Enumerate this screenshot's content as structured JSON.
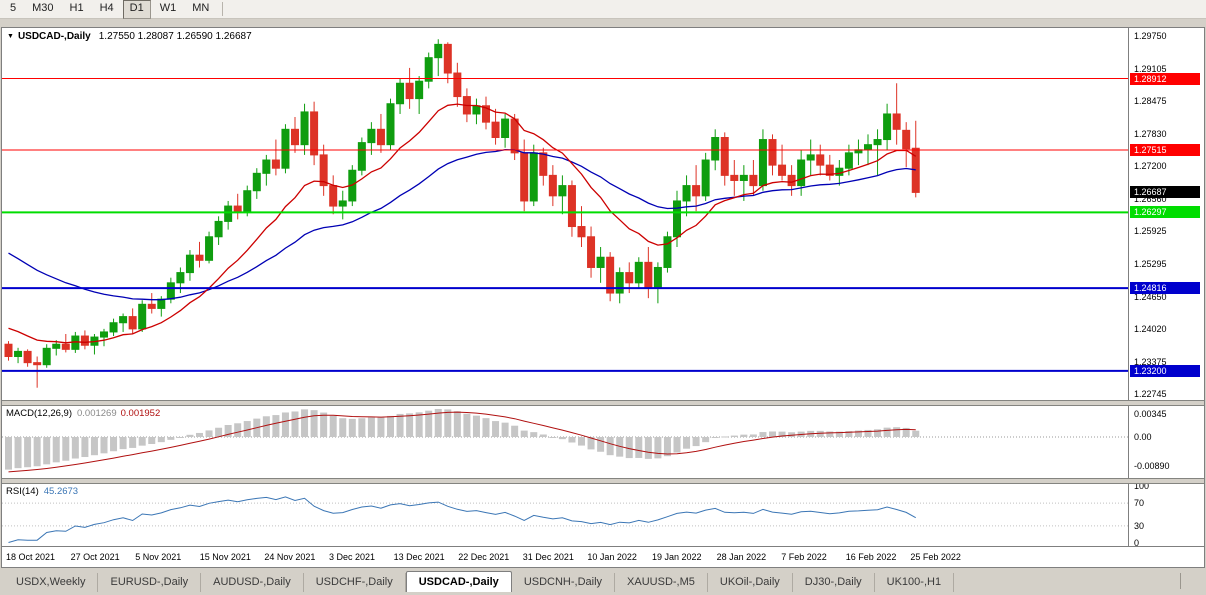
{
  "toolbar": {
    "timeframes": [
      {
        "label": "5",
        "active": false
      },
      {
        "label": "M30",
        "active": false
      },
      {
        "label": "H1",
        "active": false
      },
      {
        "label": "H4",
        "active": false
      },
      {
        "label": "D1",
        "active": true
      },
      {
        "label": "W1",
        "active": false
      },
      {
        "label": "MN",
        "active": false
      }
    ]
  },
  "chart": {
    "menu_icon": "▼",
    "symbol": "USDCAD-,Daily",
    "ohlc_text": "1.27550 1.28087 1.26590 1.26687",
    "price_axis_labels": [
      "1.29750",
      "1.29105",
      "1.28475",
      "1.27830",
      "1.27200",
      "1.26560",
      "1.25925",
      "1.25295",
      "1.24650",
      "1.24020",
      "1.23375",
      "1.22745"
    ],
    "date_labels": [
      "18 Oct 2021",
      "27 Oct 2021",
      "5 Nov 2021",
      "15 Nov 2021",
      "24 Nov 2021",
      "3 Dec 2021",
      "13 Dec 2021",
      "22 Dec 2021",
      "31 Dec 2021",
      "10 Jan 2022",
      "19 Jan 2022",
      "28 Jan 2022",
      "7 Feb 2022",
      "16 Feb 2022",
      "25 Feb 2022"
    ],
    "levels": [
      {
        "price": 1.28912,
        "label": "1.28912",
        "color": "#ff0000",
        "thickness": 1
      },
      {
        "price": 1.27515,
        "label": "1.27515",
        "color": "#ff0000",
        "thickness": 1
      },
      {
        "price": 1.26297,
        "label": "1.26297",
        "color": "#00dd00",
        "thickness": 2
      },
      {
        "price": 1.24816,
        "label": "1.24816",
        "color": "#0000cd",
        "thickness": 2
      },
      {
        "price": 1.232,
        "label": "1.23200",
        "color": "#0000cd",
        "thickness": 2
      }
    ],
    "current_price": {
      "value": 1.26687,
      "label": "1.26687",
      "bg": "#000000",
      "fg": "#ffffff"
    }
  },
  "chart_data": {
    "type": "candlestick",
    "symbol": "USDCAD-",
    "timeframe": "Daily",
    "ohlc_current": {
      "open": 1.2755,
      "high": 1.28087,
      "low": 1.2659,
      "close": 1.26687
    },
    "y_axis_range": [
      1.2263,
      1.299
    ],
    "candles": [
      [
        1.2372,
        1.2378,
        1.234,
        1.2348
      ],
      [
        1.2348,
        1.2365,
        1.2335,
        1.2358
      ],
      [
        1.2358,
        1.2362,
        1.2328,
        1.2336
      ],
      [
        1.2336,
        1.2348,
        1.2287,
        1.2332
      ],
      [
        1.2332,
        1.2372,
        1.2326,
        1.2364
      ],
      [
        1.2364,
        1.238,
        1.235,
        1.2372
      ],
      [
        1.2372,
        1.2392,
        1.2356,
        1.2362
      ],
      [
        1.2362,
        1.2396,
        1.2355,
        1.2388
      ],
      [
        1.2388,
        1.2399,
        1.2362,
        1.237
      ],
      [
        1.237,
        1.2392,
        1.2352,
        1.2386
      ],
      [
        1.2386,
        1.2402,
        1.2368,
        1.2396
      ],
      [
        1.2396,
        1.2422,
        1.2388,
        1.2414
      ],
      [
        1.2414,
        1.2432,
        1.2396,
        1.2426
      ],
      [
        1.2426,
        1.2442,
        1.2392,
        1.2402
      ],
      [
        1.2402,
        1.2458,
        1.2396,
        1.245
      ],
      [
        1.245,
        1.2472,
        1.2432,
        1.2442
      ],
      [
        1.2442,
        1.2466,
        1.2426,
        1.246
      ],
      [
        1.246,
        1.2502,
        1.2452,
        1.2492
      ],
      [
        1.2492,
        1.2522,
        1.2472,
        1.2512
      ],
      [
        1.2512,
        1.2556,
        1.2496,
        1.2546
      ],
      [
        1.2546,
        1.2572,
        1.2522,
        1.2536
      ],
      [
        1.2536,
        1.2592,
        1.253,
        1.2582
      ],
      [
        1.2582,
        1.2622,
        1.2566,
        1.2612
      ],
      [
        1.2612,
        1.2652,
        1.2596,
        1.2642
      ],
      [
        1.2642,
        1.2666,
        1.2616,
        1.263
      ],
      [
        1.263,
        1.2682,
        1.2622,
        1.2672
      ],
      [
        1.2672,
        1.2716,
        1.2656,
        1.2706
      ],
      [
        1.2706,
        1.2742,
        1.2682,
        1.2732
      ],
      [
        1.2732,
        1.2772,
        1.2702,
        1.2716
      ],
      [
        1.2716,
        1.2802,
        1.2706,
        1.2792
      ],
      [
        1.2792,
        1.2816,
        1.2746,
        1.2762
      ],
      [
        1.2762,
        1.2842,
        1.2742,
        1.2826
      ],
      [
        1.2826,
        1.2846,
        1.2722,
        1.2742
      ],
      [
        1.2742,
        1.2762,
        1.2662,
        1.2682
      ],
      [
        1.2682,
        1.2702,
        1.2626,
        1.2642
      ],
      [
        1.2642,
        1.2672,
        1.2616,
        1.2652
      ],
      [
        1.2652,
        1.2722,
        1.2642,
        1.2712
      ],
      [
        1.2712,
        1.2776,
        1.2702,
        1.2766
      ],
      [
        1.2766,
        1.2806,
        1.2742,
        1.2792
      ],
      [
        1.2792,
        1.2822,
        1.2746,
        1.2762
      ],
      [
        1.2762,
        1.2852,
        1.2752,
        1.2842
      ],
      [
        1.2842,
        1.2892,
        1.2822,
        1.2882
      ],
      [
        1.2882,
        1.2912,
        1.2832,
        1.2852
      ],
      [
        1.2852,
        1.2896,
        1.2822,
        1.2886
      ],
      [
        1.2886,
        1.2942,
        1.2872,
        1.2932
      ],
      [
        1.2932,
        1.2968,
        1.2896,
        1.2958
      ],
      [
        1.2958,
        1.2962,
        1.2882,
        1.2902
      ],
      [
        1.2902,
        1.2922,
        1.2836,
        1.2856
      ],
      [
        1.2856,
        1.2872,
        1.2806,
        1.2822
      ],
      [
        1.2822,
        1.2852,
        1.2802,
        1.2838
      ],
      [
        1.2838,
        1.2856,
        1.2792,
        1.2806
      ],
      [
        1.2806,
        1.2832,
        1.2762,
        1.2776
      ],
      [
        1.2776,
        1.2822,
        1.2756,
        1.2812
      ],
      [
        1.2812,
        1.2822,
        1.2732,
        1.2746
      ],
      [
        1.2746,
        1.2772,
        1.2632,
        1.2652
      ],
      [
        1.2652,
        1.2762,
        1.2642,
        1.2746
      ],
      [
        1.2746,
        1.2756,
        1.2682,
        1.2702
      ],
      [
        1.2702,
        1.2722,
        1.2642,
        1.2662
      ],
      [
        1.2662,
        1.2702,
        1.2626,
        1.2682
      ],
      [
        1.2682,
        1.2692,
        1.2582,
        1.2602
      ],
      [
        1.2602,
        1.2642,
        1.2562,
        1.2582
      ],
      [
        1.2582,
        1.2602,
        1.2502,
        1.2522
      ],
      [
        1.2522,
        1.2562,
        1.2492,
        1.2542
      ],
      [
        1.2542,
        1.2552,
        1.2456,
        1.2472
      ],
      [
        1.2472,
        1.2522,
        1.2452,
        1.2512
      ],
      [
        1.2512,
        1.2532,
        1.2472,
        1.2492
      ],
      [
        1.2492,
        1.2542,
        1.2482,
        1.2532
      ],
      [
        1.2532,
        1.2562,
        1.2462,
        1.2482
      ],
      [
        1.2482,
        1.2532,
        1.2452,
        1.2522
      ],
      [
        1.2522,
        1.2592,
        1.2512,
        1.2582
      ],
      [
        1.2582,
        1.2672,
        1.2562,
        1.2652
      ],
      [
        1.2652,
        1.2702,
        1.2622,
        1.2682
      ],
      [
        1.2682,
        1.2722,
        1.2632,
        1.2662
      ],
      [
        1.2662,
        1.2746,
        1.2652,
        1.2732
      ],
      [
        1.2732,
        1.2792,
        1.2712,
        1.2776
      ],
      [
        1.2776,
        1.2786,
        1.2682,
        1.2702
      ],
      [
        1.2702,
        1.2732,
        1.2662,
        1.2692
      ],
      [
        1.2692,
        1.2722,
        1.2652,
        1.2702
      ],
      [
        1.2702,
        1.2732,
        1.2662,
        1.2682
      ],
      [
        1.2682,
        1.2792,
        1.2672,
        1.2772
      ],
      [
        1.2772,
        1.2782,
        1.2702,
        1.2722
      ],
      [
        1.2722,
        1.2762,
        1.2692,
        1.2702
      ],
      [
        1.2702,
        1.2722,
        1.2662,
        1.2682
      ],
      [
        1.2682,
        1.2752,
        1.2662,
        1.2732
      ],
      [
        1.2732,
        1.2772,
        1.2702,
        1.2742
      ],
      [
        1.2742,
        1.2762,
        1.2702,
        1.2722
      ],
      [
        1.2722,
        1.2742,
        1.2692,
        1.2702
      ],
      [
        1.2702,
        1.2732,
        1.2682,
        1.2716
      ],
      [
        1.2716,
        1.2762,
        1.2702,
        1.2746
      ],
      [
        1.2746,
        1.2772,
        1.2722,
        1.2752
      ],
      [
        1.2752,
        1.2782,
        1.2722,
        1.2762
      ],
      [
        1.2762,
        1.2792,
        1.2702,
        1.2772
      ],
      [
        1.2772,
        1.2842,
        1.2752,
        1.2822
      ],
      [
        1.2822,
        1.2882,
        1.2762,
        1.2792
      ],
      [
        1.279,
        1.2806,
        1.2718,
        1.2754
      ],
      [
        1.2755,
        1.28087,
        1.2659,
        1.26687
      ]
    ],
    "prehistory_closes": [
      1.293,
      1.2905,
      1.288,
      1.285,
      1.282,
      1.279,
      1.276,
      1.273,
      1.27,
      1.2672,
      1.2645,
      1.2618,
      1.2592,
      1.2566,
      1.254,
      1.2515,
      1.2492,
      1.247,
      1.245,
      1.2432,
      1.2416,
      1.2402,
      1.239,
      1.238,
      1.2372,
      1.2366,
      1.2362,
      1.236,
      1.236,
      1.2362
    ]
  },
  "macd": {
    "label": "MACD(12,26,9)",
    "value_main": "0.001269",
    "value_signal": "0.001952",
    "axis_labels": [
      "0.00345",
      "0.00",
      "-0.00890"
    ]
  },
  "rsi": {
    "label": "RSI(14)",
    "value": "45.2673",
    "axis_labels": [
      "100",
      "70",
      "30",
      "0"
    ]
  },
  "tabs": [
    {
      "label": "USDX,Weekly",
      "active": false
    },
    {
      "label": "EURUSD-,Daily",
      "active": false
    },
    {
      "label": "AUDUSD-,Daily",
      "active": false
    },
    {
      "label": "USDCHF-,Daily",
      "active": false
    },
    {
      "label": "USDCAD-,Daily",
      "active": true
    },
    {
      "label": "USDCNH-,Daily",
      "active": false
    },
    {
      "label": "XAUUSD-,M5",
      "active": false
    },
    {
      "label": "UKOil-,Daily",
      "active": false
    },
    {
      "label": "DJ30-,Daily",
      "active": false
    },
    {
      "label": "UK100-,H1",
      "active": false
    }
  ],
  "colors": {
    "candle_up": "#0f9d0f",
    "candle_down": "#dd3326",
    "ma_fast": "#cc0000",
    "ma_slow": "#0000b4",
    "macd_hist": "#c6c6c6",
    "macd_signal": "#b01010",
    "rsi_line": "#3b76b5"
  }
}
